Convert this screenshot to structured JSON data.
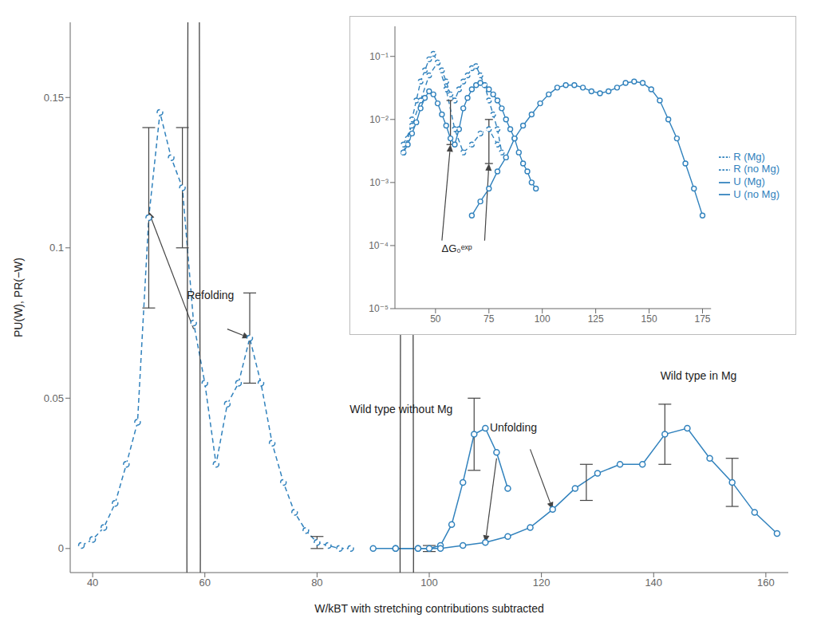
{
  "chart_data": [
    {
      "type": "line",
      "xlabel": "W/kBT with stretching contributions subtracted",
      "ylabel": "PU(W), PR(−W)",
      "xlim": [
        36,
        164
      ],
      "ylim": [
        -0.008,
        0.175
      ],
      "xticks": [
        40,
        60,
        80,
        100,
        120,
        140,
        160
      ],
      "yticks": [
        0,
        0.05,
        0.1,
        0.15
      ],
      "grid": false,
      "series": [
        {
          "line_style": "dashed",
          "marker": "o",
          "x": [
            38,
            40,
            42,
            44,
            46,
            48,
            50,
            52,
            54,
            56,
            58,
            60,
            62,
            64,
            66,
            68,
            70,
            72,
            74,
            76,
            78,
            80,
            82,
            84,
            86
          ],
          "values": [
            0.001,
            0.003,
            0.007,
            0.015,
            0.028,
            0.042,
            0.11,
            0.145,
            0.13,
            0.12,
            0.075,
            0.055,
            0.028,
            0.048,
            0.055,
            0.07,
            0.055,
            0.035,
            0.022,
            0.012,
            0.006,
            0.002,
            0.001,
            0.0,
            0.0
          ],
          "error_bars": {
            "x": [
              50,
              56,
              68,
              80
            ],
            "y": [
              0.11,
              0.12,
              0.07,
              0.002
            ],
            "error": [
              0.03,
              0.02,
              0.015,
              0.002
            ]
          }
        },
        {
          "line_style": "solid",
          "marker": "o",
          "x": [
            90,
            94,
            98,
            100,
            102,
            104,
            106,
            108,
            110,
            112,
            114
          ],
          "values": [
            0.0,
            0.0,
            0.0,
            0.0,
            0.001,
            0.008,
            0.022,
            0.038,
            0.04,
            0.032,
            0.02
          ],
          "error_bars": {
            "x": [
              100,
              108
            ],
            "y": [
              0.0,
              0.038
            ],
            "error": [
              0.001,
              0.012
            ]
          }
        },
        {
          "line_style": "solid",
          "marker": "o",
          "x": [
            94,
            98,
            102,
            106,
            110,
            114,
            118,
            122,
            126,
            130,
            134,
            138,
            142,
            146,
            150,
            154,
            158,
            162
          ],
          "values": [
            0.0,
            0.0,
            0.0,
            0.001,
            0.002,
            0.004,
            0.007,
            0.013,
            0.02,
            0.025,
            0.028,
            0.028,
            0.038,
            0.04,
            0.03,
            0.022,
            0.012,
            0.005
          ],
          "error_bars": {
            "x": [
              128,
              142,
              154
            ],
            "y": [
              0.022,
              0.038,
              0.022
            ],
            "error": [
              0.006,
              0.01,
              0.008
            ]
          }
        }
      ],
      "circles": {
        "x": [
          58,
          96
        ],
        "y": [
          0.0,
          0.0
        ],
        "r": [
          1.2,
          1.2
        ]
      },
      "annotations": [
        {
          "text": "Refolding",
          "x": 61,
          "y": 0.082,
          "arrows": [
            {
              "from": [
                58,
                0.073
              ],
              "to": [
                50,
                0.112
              ]
            },
            {
              "from": [
                64,
                0.073
              ],
              "to": [
                68,
                0.07
              ]
            }
          ]
        },
        {
          "text": "Unfolding",
          "x": 115,
          "y": 0.038,
          "arrows": [
            {
              "from": [
                112,
                0.03
              ],
              "to": [
                110,
                0.002
              ]
            },
            {
              "from": [
                118,
                0.033
              ],
              "to": [
                122,
                0.013
              ]
            }
          ]
        },
        {
          "text": "Wild type without Mg",
          "x": 95,
          "y": 0.044
        },
        {
          "text": "Wild type in Mg",
          "x": 148,
          "y": 0.055
        }
      ]
    },
    {
      "type": "line",
      "log": "y",
      "xlim": [
        31,
        179
      ],
      "ylim": [
        1e-05,
        0.3
      ],
      "xticks": [
        50,
        75,
        100,
        125,
        150,
        175
      ],
      "yticks": [
        {
          "value": 1e-05,
          "label": "10⁻⁵"
        },
        {
          "value": 0.0001,
          "label": "10⁻⁴"
        },
        {
          "value": 0.001,
          "label": "10⁻³"
        },
        {
          "value": 0.01,
          "label": "10⁻²"
        },
        {
          "value": 0.1,
          "label": "10⁻¹"
        }
      ],
      "grid": false,
      "legend": "right",
      "series": [
        {
          "name": "U (no Mg)",
          "line_style": "solid",
          "marker": "o",
          "x": [
            35,
            37,
            39,
            41,
            43,
            45,
            47,
            49,
            51,
            53,
            55,
            57,
            59,
            61,
            63,
            65,
            67,
            69,
            71,
            73,
            75,
            77,
            79,
            81,
            83,
            85,
            87,
            89,
            91,
            93,
            95,
            97
          ],
          "values": [
            0.003,
            0.004,
            0.006,
            0.009,
            0.015,
            0.022,
            0.028,
            0.025,
            0.018,
            0.012,
            0.008,
            0.005,
            0.004,
            0.007,
            0.015,
            0.022,
            0.03,
            0.035,
            0.038,
            0.035,
            0.03,
            0.025,
            0.02,
            0.015,
            0.01,
            0.007,
            0.005,
            0.003,
            0.002,
            0.0015,
            0.001,
            0.0008
          ]
        },
        {
          "name": "R (no Mg)",
          "line_style": "dashed",
          "marker": "o",
          "x": [
            35,
            37,
            39,
            41,
            43,
            45,
            47,
            49,
            51,
            53,
            55,
            57,
            59,
            61,
            63,
            65,
            67,
            69,
            71,
            73,
            75,
            77,
            79,
            81
          ],
          "values": [
            0.003,
            0.005,
            0.01,
            0.02,
            0.04,
            0.06,
            0.09,
            0.11,
            0.08,
            0.06,
            0.04,
            0.025,
            0.02,
            0.03,
            0.04,
            0.05,
            0.065,
            0.07,
            0.05,
            0.035,
            0.02,
            0.012,
            0.007,
            0.003
          ]
        },
        {
          "name": "U (Mg)",
          "line_style": "solid",
          "marker": "o",
          "x": [
            67,
            71,
            75,
            79,
            83,
            87,
            91,
            95,
            99,
            103,
            107,
            111,
            115,
            119,
            123,
            127,
            131,
            135,
            139,
            143,
            147,
            151,
            155,
            159,
            163,
            167,
            171,
            175
          ],
          "values": [
            0.0003,
            0.0005,
            0.0008,
            0.0015,
            0.0025,
            0.005,
            0.008,
            0.012,
            0.018,
            0.025,
            0.032,
            0.035,
            0.035,
            0.032,
            0.028,
            0.026,
            0.028,
            0.032,
            0.038,
            0.04,
            0.038,
            0.03,
            0.02,
            0.01,
            0.005,
            0.002,
            0.0008,
            0.0003
          ]
        },
        {
          "name": "R (Mg)",
          "line_style": "dashed",
          "marker": "o",
          "x": [
            35,
            39,
            43,
            47,
            51,
            55,
            59,
            63,
            67,
            71,
            75,
            79
          ],
          "values": [
            0.004,
            0.008,
            0.02,
            0.05,
            0.08,
            0.03,
            0.007,
            0.003,
            0.004,
            0.006,
            0.007,
            0.004
          ]
        }
      ],
      "error_bars": [
        {
          "x": 57,
          "low": 0.004,
          "high": 0.02
        },
        {
          "x": 75,
          "low": 0.002,
          "high": 0.01
        }
      ],
      "annotations": [
        {
          "text": "ΔG₀ᵉˣᵖ",
          "x": 60,
          "y": 7e-05,
          "arrows": [
            {
              "from": [
                53,
                0.00012
              ],
              "to": [
                57,
                0.004
              ]
            },
            {
              "from": [
                73,
                0.00012
              ],
              "to": [
                75,
                0.002
              ]
            }
          ]
        }
      ]
    }
  ]
}
